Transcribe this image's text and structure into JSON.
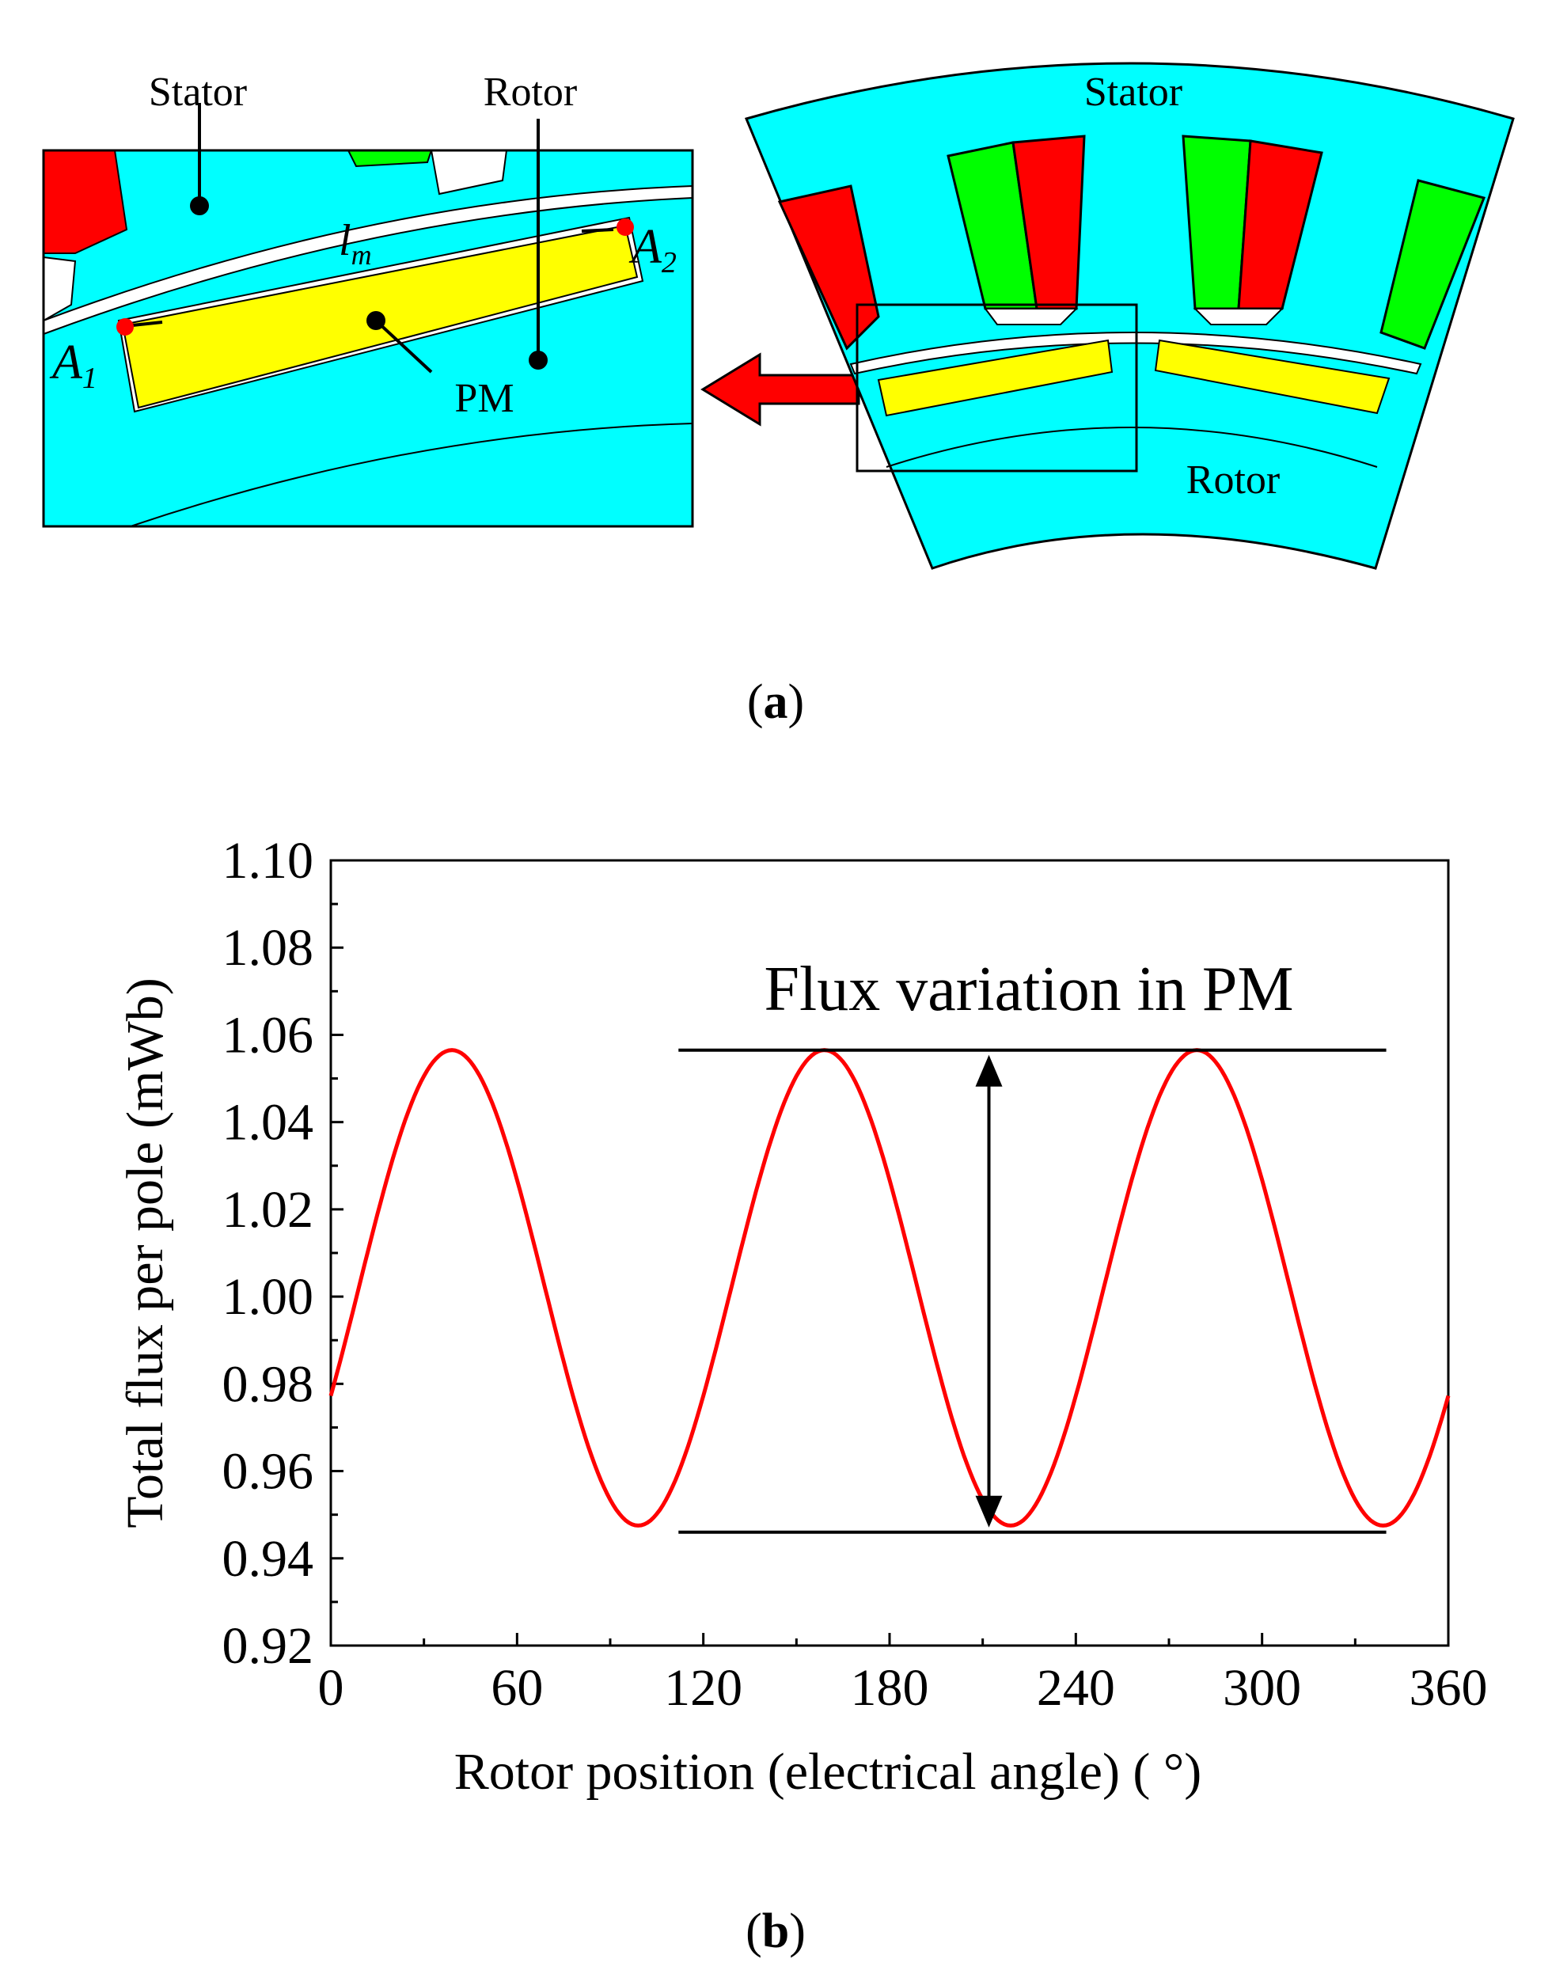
{
  "figure_a": {
    "caption": "a",
    "zoom_labels": {
      "stator": "Stator",
      "rotor": "Rotor",
      "pm": "PM",
      "lm": "l",
      "lm_sub": "m",
      "a1": "A",
      "a1_sub": "1",
      "a2": "A",
      "a2_sub": "2"
    },
    "section_labels": {
      "stator": "Stator",
      "rotor": "Rotor"
    },
    "colors": {
      "iron": "#00ffff",
      "coil_red": "#ff0000",
      "coil_green": "#00ff00",
      "magnet": "#ffff00",
      "arrow": "#ff0000"
    }
  },
  "figure_b": {
    "caption": "b",
    "annotation": "Flux variation in PM"
  },
  "chart_data": {
    "type": "line",
    "title": "",
    "xlabel": "Rotor position (electrical angle)  ( °)",
    "ylabel": "Total  flux per pole (mWb)",
    "xlim": [
      0,
      360
    ],
    "ylim": [
      0.92,
      1.1
    ],
    "xticks": [
      0,
      60,
      120,
      180,
      240,
      300,
      360
    ],
    "yticks": [
      0.92,
      0.94,
      0.96,
      0.98,
      1.0,
      1.02,
      1.04,
      1.06,
      1.08,
      1.1
    ],
    "xtick_labels": [
      "0",
      "60",
      "120",
      "180",
      "240",
      "300",
      "360"
    ],
    "ytick_labels": [
      "0.92",
      "0.94",
      "0.96",
      "0.98",
      "1.00",
      "1.02",
      "1.04",
      "1.06",
      "1.08",
      "1.10"
    ],
    "series": [
      {
        "name": "Total flux per pole",
        "color": "#ff0000",
        "model": {
          "mean": 1.002,
          "amplitude": 0.0545,
          "period_deg": 120,
          "peak_at_deg": 39
        }
      }
    ],
    "reference_lines": {
      "max": 1.0565,
      "min": 0.946
    },
    "grid": false
  }
}
